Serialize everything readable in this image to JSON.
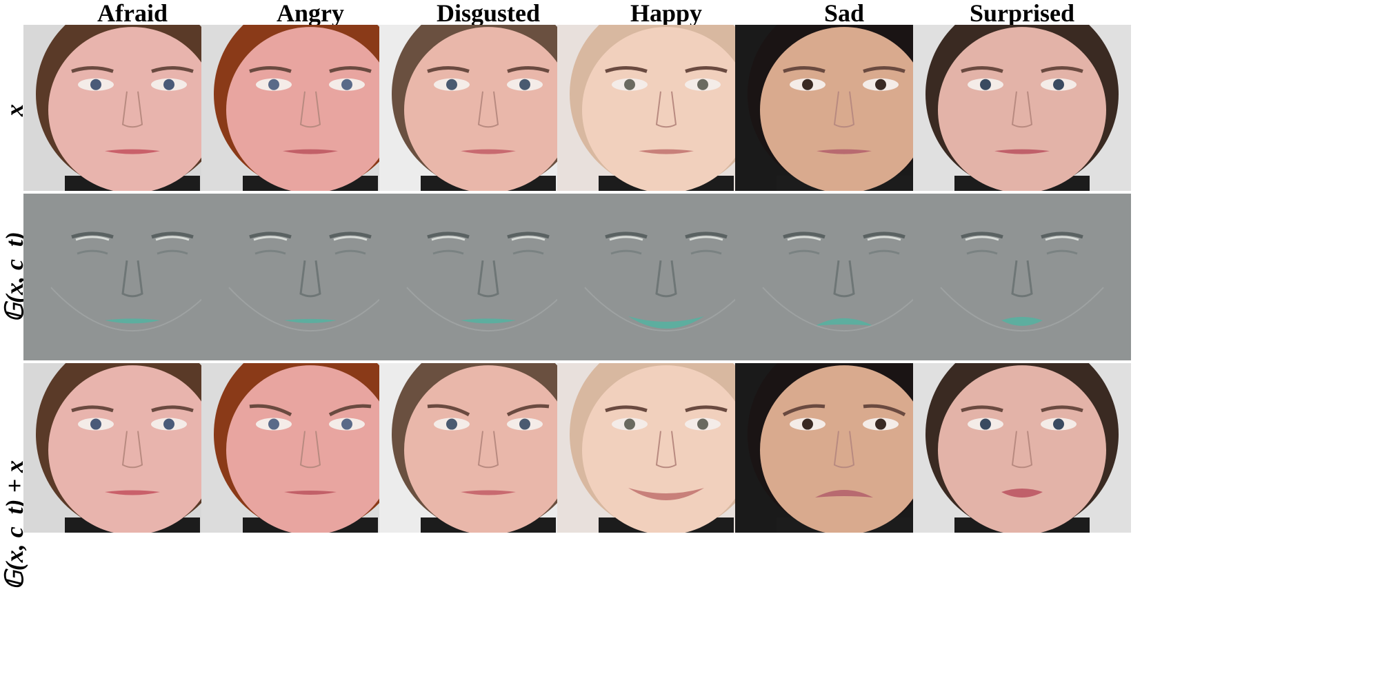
{
  "columns": [
    "Afraid",
    "Angry",
    "Disgusted",
    "Happy",
    "Sad",
    "Surprised"
  ],
  "row_labels": [
    "x",
    "𝔾(x, c_t)",
    "𝔾(x, c_t) + x"
  ],
  "faces": [
    {
      "skin": "#e8b4ad",
      "hair": "#5a3a28",
      "bg": "#d8d8d8",
      "lips": "#c9606a",
      "eyes": "#4a5a78"
    },
    {
      "skin": "#e8a5a0",
      "hair": "#8a3a18",
      "bg": "#dcdcdc",
      "lips": "#c26068",
      "eyes": "#5a6a88"
    },
    {
      "skin": "#e9b7aa",
      "hair": "#6a5040",
      "bg": "#ececec",
      "lips": "#c86a70",
      "eyes": "#4a5a70"
    },
    {
      "skin": "#f1d0bd",
      "hair": "#d8b8a0",
      "bg": "#e8e0dc",
      "lips": "#c8807a",
      "eyes": "#6a6a60"
    },
    {
      "skin": "#d9aa8e",
      "hair": "#1a1414",
      "bg": "#1a1a1a",
      "lips": "#b86a70",
      "eyes": "#3a2a24"
    },
    {
      "skin": "#e3b3a8",
      "hair": "#3a2a22",
      "bg": "#e0e0e0",
      "lips": "#c0606a",
      "eyes": "#3a4a60"
    }
  ],
  "mask_color": "#909494",
  "mask_mouth_color": "#58b0a0",
  "expressions": [
    "afraid",
    "angry",
    "disgusted",
    "happy",
    "sad",
    "surprised"
  ]
}
